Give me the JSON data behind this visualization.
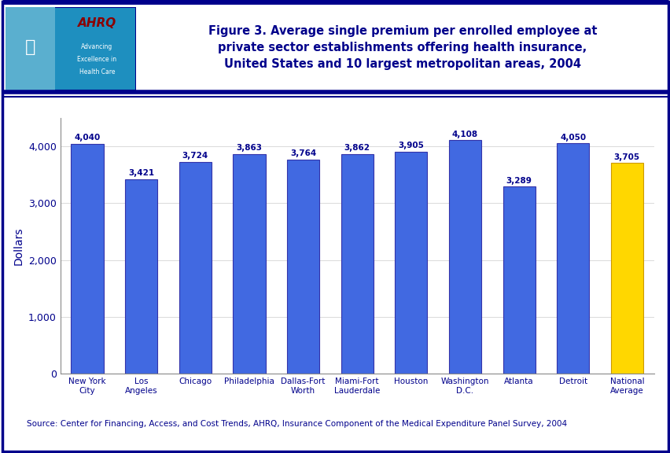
{
  "categories": [
    "New York\nCity",
    "Los\nAngeles",
    "Chicago",
    "Philadelphia",
    "Dallas-Fort\nWorth",
    "Miami-Fort\nLauderdale",
    "Houston",
    "Washington\nD.C.",
    "Atlanta",
    "Detroit",
    "National\nAverage"
  ],
  "values": [
    4040,
    3421,
    3724,
    3863,
    3764,
    3862,
    3905,
    4108,
    3289,
    4050,
    3705
  ],
  "bar_colors": [
    "#4169E1",
    "#4169E1",
    "#4169E1",
    "#4169E1",
    "#4169E1",
    "#4169E1",
    "#4169E1",
    "#4169E1",
    "#4169E1",
    "#4169E1",
    "#FFD700"
  ],
  "bar_edge_colors": [
    "#3333AA",
    "#3333AA",
    "#3333AA",
    "#3333AA",
    "#3333AA",
    "#3333AA",
    "#3333AA",
    "#3333AA",
    "#3333AA",
    "#3333AA",
    "#CC9900"
  ],
  "title_line1": "Figure 3. Average single premium per enrolled employee at",
  "title_line2": "private sector establishments offering health insurance,",
  "title_line3": "United States and 10 largest metropolitan areas, 2004",
  "ylabel": "Dollars",
  "ylim": [
    0,
    4500
  ],
  "yticks": [
    0,
    1000,
    2000,
    3000,
    4000
  ],
  "ytick_labels": [
    "0",
    "1,000",
    "2,000",
    "3,000",
    "4,000"
  ],
  "source_text": "Source: Center for Financing, Access, and Cost Trends, AHRQ, Insurance Component of the Medical Expenditure Panel Survey, 2004",
  "value_labels": [
    "4,040",
    "3,421",
    "3,724",
    "3,863",
    "3,764",
    "3,862",
    "3,905",
    "4,108",
    "3,289",
    "4,050",
    "3,705"
  ],
  "background_color": "#FFFFFF",
  "title_color": "#00008B",
  "bar_label_color": "#00008B",
  "ylabel_color": "#00008B",
  "axis_label_color": "#00008B",
  "separator_color": "#00008B",
  "outer_border_color": "#00008B",
  "header_separator_color": "#00008B",
  "logo_bg_color": "#1E8FBF",
  "logo_text_color": "#8B0000"
}
